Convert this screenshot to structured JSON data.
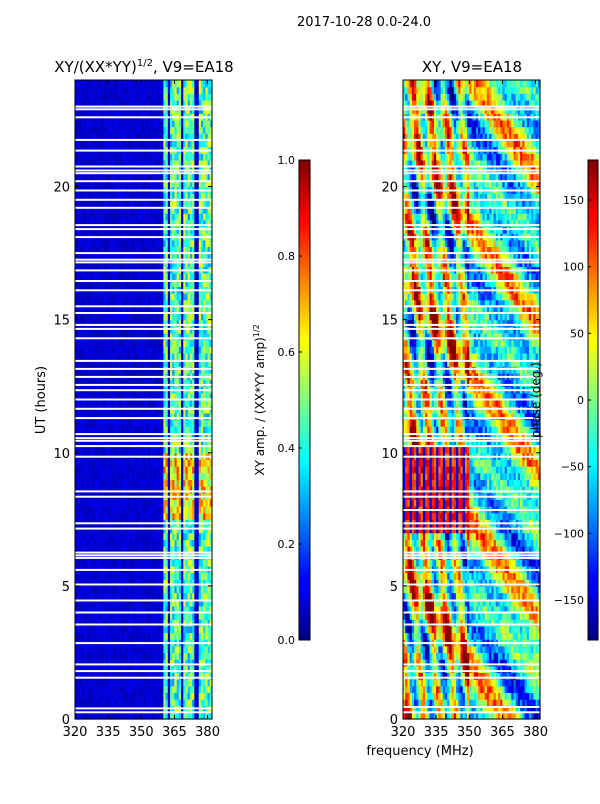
{
  "suptitle": "2017-10-28 0.0-24.0",
  "chart_data": [
    {
      "type": "heatmap",
      "id": "amp",
      "title_main": "XY/(XX*YY)",
      "title_exp": "1/2",
      "title_tail": ", V9=EA18",
      "xlabel": "",
      "ylabel": "UT (hours)",
      "xlim": [
        320,
        382
      ],
      "ylim": [
        0,
        24
      ],
      "xticks": [
        320,
        335,
        350,
        365,
        380
      ],
      "yticks": [
        0,
        5,
        10,
        15,
        20
      ],
      "colormap": "jet",
      "colorbar": {
        "label_main": "XY amp. / (XX*YY amp)",
        "label_exp": "1/2",
        "vmin": 0.0,
        "vmax": 1.0,
        "ticks": [
          "0.0",
          "0.2",
          "0.4",
          "0.6",
          "0.8",
          "1.0"
        ],
        "tick_values": [
          0.0,
          0.2,
          0.4,
          0.6,
          0.8,
          1.0
        ]
      },
      "features": {
        "background_value": 0.05,
        "bright_channel_bands_mhz": [
          [
            360.5,
            362
          ],
          [
            363.5,
            365
          ],
          [
            365.5,
            367.5
          ],
          [
            369.5,
            371
          ],
          [
            371.5,
            373.5
          ],
          [
            376,
            377.5
          ],
          [
            378,
            380
          ],
          [
            380.5,
            381.5
          ]
        ],
        "bright_band_value": 0.45,
        "flagged_rows_ut": [
          0.25,
          0.4,
          1.55,
          1.8,
          2.05,
          2.85,
          3.55,
          4.0,
          4.45,
          5.05,
          5.6,
          6.05,
          6.15,
          6.25,
          7.15,
          7.35,
          8.35,
          8.55,
          9.85,
          10.25,
          10.45,
          10.55,
          10.7,
          11.3,
          11.65,
          12.0,
          12.35,
          12.55,
          12.85,
          13.15,
          13.45,
          14.3,
          14.65,
          14.8,
          15.25,
          15.5,
          16.1,
          16.45,
          16.85,
          17.15,
          17.25,
          17.5,
          18.1,
          18.4,
          18.55,
          19.2,
          19.5,
          19.85,
          20.2,
          20.5,
          20.6,
          20.75,
          21.35,
          21.75,
          22.6,
          22.9,
          23.0
        ]
      }
    },
    {
      "type": "heatmap",
      "id": "phase",
      "title": "XY, V9=EA18",
      "xlabel": "frequency (MHz)",
      "ylabel": "",
      "xlim": [
        320,
        382
      ],
      "ylim": [
        0,
        24
      ],
      "xticks": [
        320,
        335,
        350,
        365,
        380
      ],
      "yticks": [
        0,
        5,
        10,
        15,
        20
      ],
      "colormap": "jet",
      "colorbar": {
        "label": "phase (deg.)",
        "vmin": -180,
        "vmax": 180,
        "ticks": [
          "−150",
          "−100",
          "−50",
          "0",
          "50",
          "100",
          "150"
        ],
        "tick_values": [
          -150,
          -100,
          -50,
          0,
          50,
          100,
          150
        ]
      },
      "features": {
        "flagged_rows_ut": [
          0.25,
          0.45,
          1.55,
          1.8,
          2.05,
          2.85,
          3.55,
          4.0,
          4.45,
          5.05,
          5.6,
          6.05,
          6.15,
          6.25,
          7.15,
          7.35,
          7.85,
          8.35,
          8.55,
          9.85,
          10.25,
          10.45,
          10.55,
          10.7,
          11.3,
          11.65,
          12.0,
          12.35,
          12.55,
          12.85,
          13.15,
          13.45,
          14.3,
          14.65,
          14.8,
          15.25,
          15.5,
          16.1,
          16.45,
          16.85,
          17.15,
          17.25,
          17.5,
          18.1,
          18.4,
          18.55,
          19.2,
          19.5,
          19.85,
          20.2,
          20.5,
          20.6,
          20.75,
          21.35,
          21.75,
          22.6,
          22.9,
          23.0
        ]
      }
    }
  ]
}
